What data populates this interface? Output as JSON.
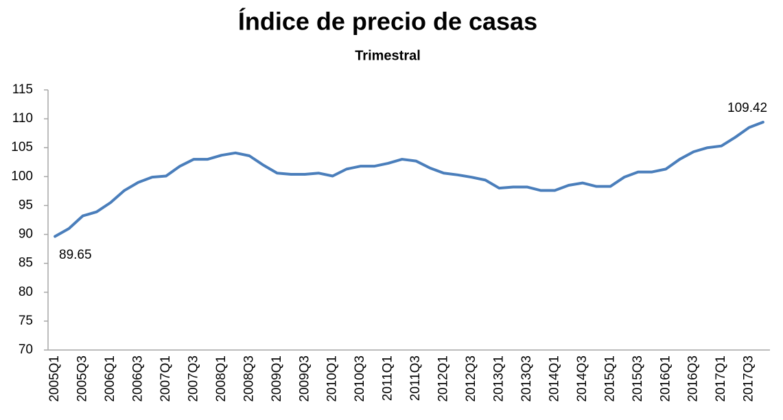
{
  "chart_data": {
    "type": "line",
    "title": "Índice de precio de casas",
    "subtitle": "Trimestral",
    "categories": [
      "2005Q1",
      null,
      "2005Q3",
      null,
      "2006Q1",
      null,
      "2006Q3",
      null,
      "2007Q1",
      null,
      "2007Q3",
      null,
      "2008Q1",
      null,
      "2008Q3",
      null,
      "2009Q1",
      null,
      "2009Q3",
      null,
      "2010Q1",
      null,
      "2010Q3",
      null,
      "2011Q1",
      null,
      "2011Q3",
      null,
      "2012Q1",
      null,
      "2012Q3",
      null,
      "2013Q1",
      null,
      "2013Q3",
      null,
      "2014Q1",
      null,
      "2014Q3",
      null,
      "2015Q1",
      null,
      "2015Q3",
      null,
      "2016Q1",
      null,
      "2016Q3",
      null,
      "2017Q1",
      null,
      "2017Q3",
      null
    ],
    "values": [
      89.65,
      91,
      93.2,
      93.9,
      95.5,
      97.6,
      99,
      99.9,
      100.1,
      101.8,
      103,
      103,
      103.7,
      104.1,
      103.6,
      102,
      100.6,
      100.4,
      100.4,
      100.6,
      100.1,
      101.3,
      101.8,
      101.8,
      102.3,
      103,
      102.7,
      101.5,
      100.6,
      100.3,
      99.9,
      99.4,
      98,
      98.2,
      98.2,
      97.6,
      97.6,
      98.5,
      98.9,
      98.3,
      98.3,
      99.9,
      100.8,
      100.8,
      101.3,
      103,
      104.3,
      105,
      105.3,
      106.8,
      108.5,
      109.42
    ],
    "color": "#4a7ebb",
    "ylim": [
      70,
      115
    ],
    "yticks": [
      70,
      75,
      80,
      85,
      90,
      95,
      100,
      105,
      110,
      115
    ],
    "grid": false
  }
}
